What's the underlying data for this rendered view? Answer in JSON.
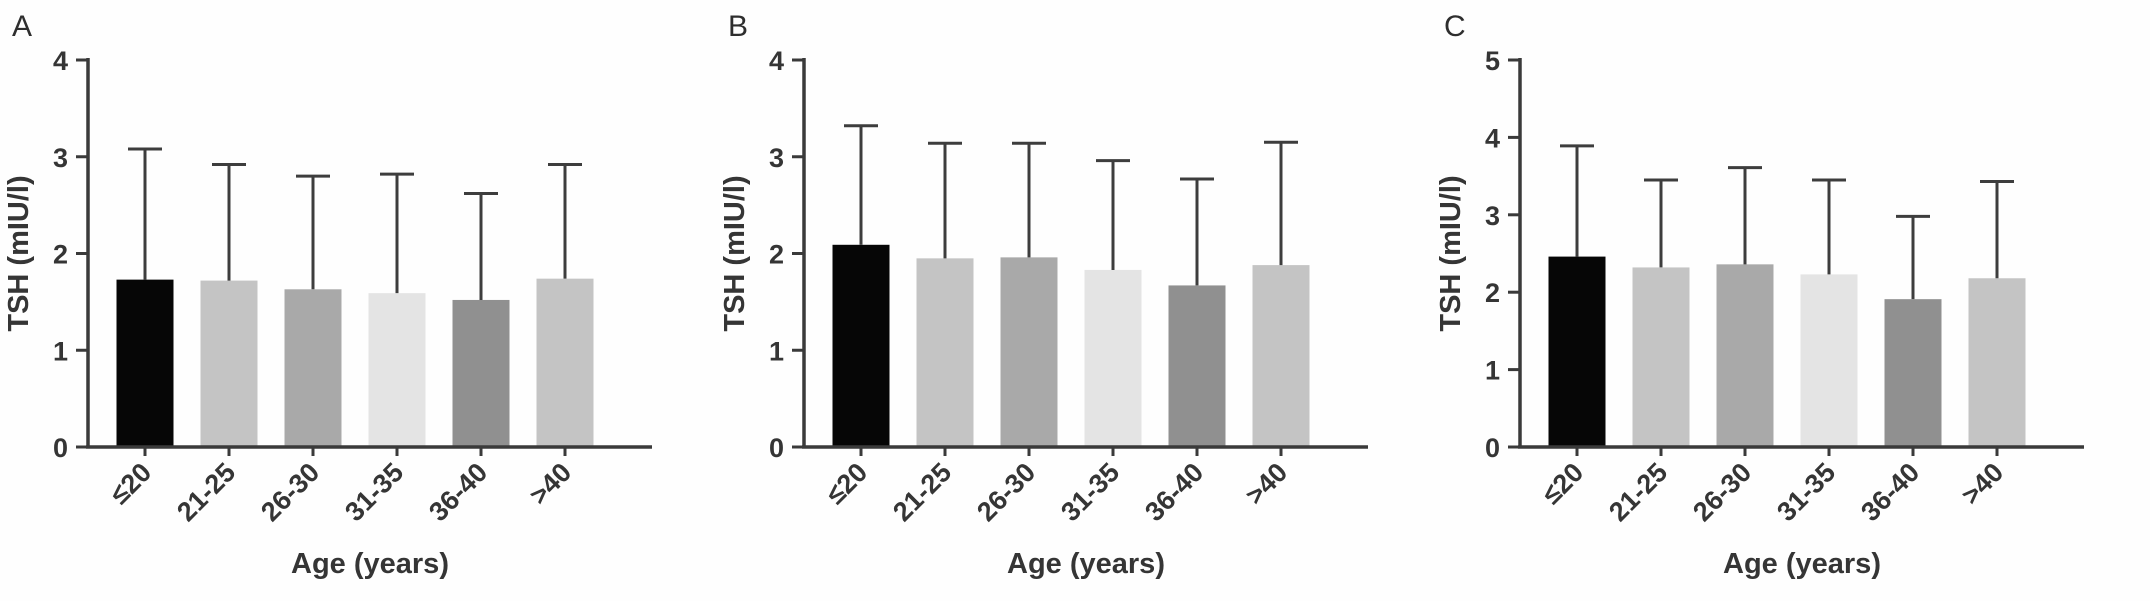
{
  "figure": {
    "description": "Three-panel bar figure of TSH by maternal age group",
    "panel_letters": [
      "A",
      "B",
      "C"
    ]
  },
  "colors": {
    "background": "#fefefe",
    "axis": "#3a3a3a",
    "error_bar": "#3d3d3d",
    "text": "#353535"
  },
  "chart_data": [
    {
      "type": "bar",
      "panel_label": "A",
      "categories": [
        "≤20",
        "21-25",
        "26-30",
        "31-35",
        "36-40",
        ">40"
      ],
      "values": [
        1.73,
        1.72,
        1.63,
        1.59,
        1.52,
        1.74
      ],
      "error_bar_tops": [
        3.08,
        2.92,
        2.8,
        2.82,
        2.62,
        2.92
      ],
      "error_direction": "up",
      "xlabel": "Age (years)",
      "ylabel": "TSH (mIU/l)",
      "ylim": [
        0,
        4
      ],
      "yticks": [
        0,
        1,
        2,
        3,
        4
      ],
      "grid": false,
      "legend": "none",
      "bar_colors": [
        "#060606",
        "#c4c4c4",
        "#a9a9a9",
        "#e4e4e4",
        "#909090",
        "#c4c4c4"
      ]
    },
    {
      "type": "bar",
      "panel_label": "B",
      "categories": [
        "≤20",
        "21-25",
        "26-30",
        "31-35",
        "36-40",
        ">40"
      ],
      "values": [
        2.09,
        1.95,
        1.96,
        1.83,
        1.67,
        1.88
      ],
      "error_bar_tops": [
        3.32,
        3.14,
        3.14,
        2.96,
        2.77,
        3.15
      ],
      "error_direction": "up",
      "xlabel": "Age (years)",
      "ylabel": "TSH (mIU/l)",
      "ylim": [
        0,
        4
      ],
      "yticks": [
        0,
        1,
        2,
        3,
        4
      ],
      "grid": false,
      "legend": "none",
      "bar_colors": [
        "#060606",
        "#c4c4c4",
        "#a9a9a9",
        "#e4e4e4",
        "#909090",
        "#c4c4c4"
      ]
    },
    {
      "type": "bar",
      "panel_label": "C",
      "categories": [
        "≤20",
        "21-25",
        "26-30",
        "31-35",
        "36-40",
        ">40"
      ],
      "values": [
        2.46,
        2.32,
        2.36,
        2.23,
        1.91,
        2.18
      ],
      "error_bar_tops": [
        3.89,
        3.45,
        3.61,
        3.45,
        2.98,
        3.43
      ],
      "error_direction": "up",
      "xlabel": "Age (years)",
      "ylabel": "TSH (mIU/l)",
      "ylim": [
        0,
        5
      ],
      "yticks": [
        0,
        1,
        2,
        3,
        4,
        5
      ],
      "grid": false,
      "legend": "none",
      "bar_colors": [
        "#060606",
        "#c4c4c4",
        "#a9a9a9",
        "#e4e4e4",
        "#909090",
        "#c4c4c4"
      ]
    }
  ]
}
